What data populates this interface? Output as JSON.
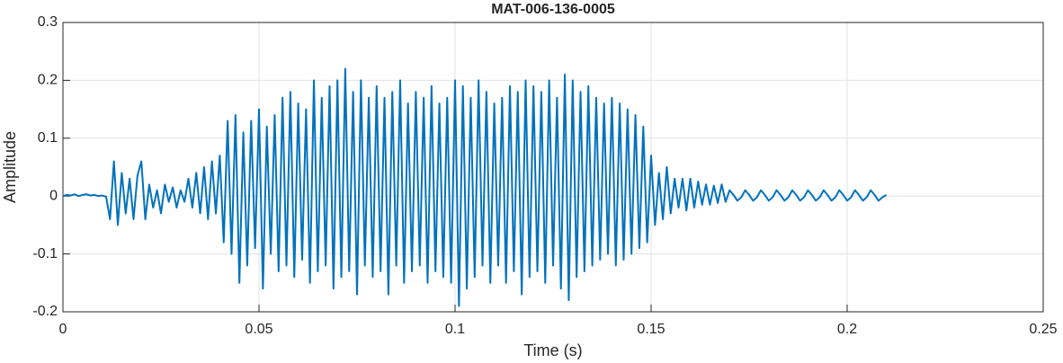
{
  "chart_data": {
    "type": "line",
    "title": "MAT-006-136-0005",
    "x_label": "Time (s)",
    "y_label": "Amplitude",
    "x": [
      0,
      0.001,
      0.002,
      0.003,
      0.004,
      0.005,
      0.006,
      0.007,
      0.008,
      0.009,
      0.01,
      0.011,
      0.012,
      0.013,
      0.014,
      0.015,
      0.016,
      0.017,
      0.018,
      0.019,
      0.02,
      0.021,
      0.022,
      0.023,
      0.024,
      0.025,
      0.026,
      0.027,
      0.028,
      0.029,
      0.03,
      0.031,
      0.032,
      0.033,
      0.034,
      0.035,
      0.036,
      0.037,
      0.038,
      0.039,
      0.04,
      0.041,
      0.042,
      0.043,
      0.044,
      0.045,
      0.046,
      0.047,
      0.048,
      0.049,
      0.05,
      0.051,
      0.052,
      0.053,
      0.054,
      0.055,
      0.056,
      0.057,
      0.058,
      0.059,
      0.06,
      0.061,
      0.062,
      0.063,
      0.064,
      0.065,
      0.066,
      0.067,
      0.068,
      0.069,
      0.07,
      0.071,
      0.072,
      0.073,
      0.074,
      0.075,
      0.076,
      0.077,
      0.078,
      0.079,
      0.08,
      0.081,
      0.082,
      0.083,
      0.084,
      0.085,
      0.086,
      0.087,
      0.088,
      0.089,
      0.09,
      0.091,
      0.092,
      0.093,
      0.094,
      0.095,
      0.096,
      0.097,
      0.098,
      0.099,
      0.1,
      0.101,
      0.102,
      0.103,
      0.104,
      0.105,
      0.106,
      0.107,
      0.108,
      0.109,
      0.11,
      0.111,
      0.112,
      0.113,
      0.114,
      0.115,
      0.116,
      0.117,
      0.118,
      0.119,
      0.12,
      0.121,
      0.122,
      0.123,
      0.124,
      0.125,
      0.126,
      0.127,
      0.128,
      0.129,
      0.13,
      0.131,
      0.132,
      0.133,
      0.134,
      0.135,
      0.136,
      0.137,
      0.138,
      0.139,
      0.14,
      0.141,
      0.142,
      0.143,
      0.144,
      0.145,
      0.146,
      0.147,
      0.148,
      0.149,
      0.15,
      0.151,
      0.152,
      0.153,
      0.154,
      0.155,
      0.156,
      0.157,
      0.158,
      0.159,
      0.16,
      0.161,
      0.162,
      0.163,
      0.164,
      0.165,
      0.166,
      0.167,
      0.168,
      0.169,
      0.17,
      0.171,
      0.172,
      0.173,
      0.174,
      0.175,
      0.176,
      0.177,
      0.178,
      0.179,
      0.18,
      0.181,
      0.182,
      0.183,
      0.184,
      0.185,
      0.186,
      0.187,
      0.188,
      0.189,
      0.19,
      0.191,
      0.192,
      0.193,
      0.194,
      0.195,
      0.196,
      0.197,
      0.198,
      0.199,
      0.2,
      0.201,
      0.202,
      0.203,
      0.204,
      0.205,
      0.206,
      0.207,
      0.208,
      0.209,
      0.21
    ],
    "series": [
      {
        "color": "#0072bd",
        "values": [
          0,
          0.002,
          0.001,
          0.003,
          0,
          0.002,
          0.003,
          0.001,
          0.002,
          0,
          0.001,
          -0.001,
          -0.04,
          0.06,
          -0.05,
          0.04,
          -0.03,
          0.03,
          -0.04,
          0.035,
          0.06,
          -0.04,
          0.02,
          -0.02,
          0.01,
          -0.03,
          0.02,
          -0.01,
          0.015,
          -0.02,
          0.01,
          -0.01,
          0.03,
          -0.02,
          0.04,
          -0.03,
          0.05,
          -0.04,
          0.06,
          -0.03,
          0.07,
          -0.08,
          0.13,
          -0.1,
          0.14,
          -0.15,
          0.11,
          -0.12,
          0.13,
          -0.09,
          0.15,
          -0.16,
          0.12,
          -0.1,
          0.14,
          -0.13,
          0.17,
          -0.12,
          0.18,
          -0.14,
          0.16,
          -0.11,
          0.15,
          -0.15,
          0.2,
          -0.13,
          0.17,
          -0.12,
          0.19,
          -0.16,
          0.2,
          -0.14,
          0.22,
          -0.13,
          0.18,
          -0.17,
          0.2,
          -0.12,
          0.17,
          -0.14,
          0.19,
          -0.13,
          0.17,
          -0.17,
          0.18,
          -0.12,
          0.2,
          -0.15,
          0.16,
          -0.13,
          0.18,
          -0.12,
          0.17,
          -0.15,
          0.19,
          -0.13,
          0.16,
          -0.14,
          0.17,
          -0.15,
          0.2,
          -0.19,
          0.19,
          -0.16,
          0.17,
          -0.14,
          0.2,
          -0.12,
          0.18,
          -0.15,
          0.16,
          -0.12,
          0.17,
          -0.15,
          0.19,
          -0.13,
          0.18,
          -0.17,
          0.2,
          -0.14,
          0.19,
          -0.13,
          0.18,
          -0.15,
          0.2,
          -0.12,
          0.17,
          -0.16,
          0.21,
          -0.18,
          0.2,
          -0.14,
          0.18,
          -0.13,
          0.19,
          -0.12,
          0.17,
          -0.11,
          0.16,
          -0.1,
          0.17,
          -0.12,
          0.16,
          -0.11,
          0.15,
          -0.1,
          0.14,
          -0.09,
          0.12,
          -0.08,
          0.07,
          -0.05,
          0.04,
          -0.04,
          0.05,
          -0.03,
          0.03,
          -0.02,
          0.03,
          -0.025,
          0.03,
          -0.02,
          0.025,
          -0.015,
          0.02,
          -0.015,
          0.018,
          -0.012,
          0.02,
          -0.01,
          0.01,
          0.002,
          -0.008,
          -0.002,
          0.01,
          0.002,
          -0.008,
          -0.002,
          0.01,
          0.002,
          -0.008,
          -0.002,
          0.01,
          0.002,
          -0.008,
          -0.002,
          0.01,
          0.002,
          -0.008,
          -0.002,
          0.01,
          0.002,
          -0.008,
          -0.002,
          0.01,
          0.002,
          -0.008,
          -0.002,
          0.01,
          0.002,
          -0.008,
          -0.002,
          0.01,
          0.002,
          -0.008,
          -0.002,
          0.01,
          0.002,
          -0.008,
          -0.002,
          0.002
        ]
      }
    ],
    "xlim": [
      0,
      0.25
    ],
    "xticks": [
      0,
      0.05,
      0.1,
      0.15,
      0.2,
      0.25
    ],
    "ylim": [
      -0.2,
      0.3
    ],
    "yticks": [
      -0.2,
      -0.1,
      0,
      0.1,
      0.2,
      0.3
    ],
    "grid": true
  }
}
